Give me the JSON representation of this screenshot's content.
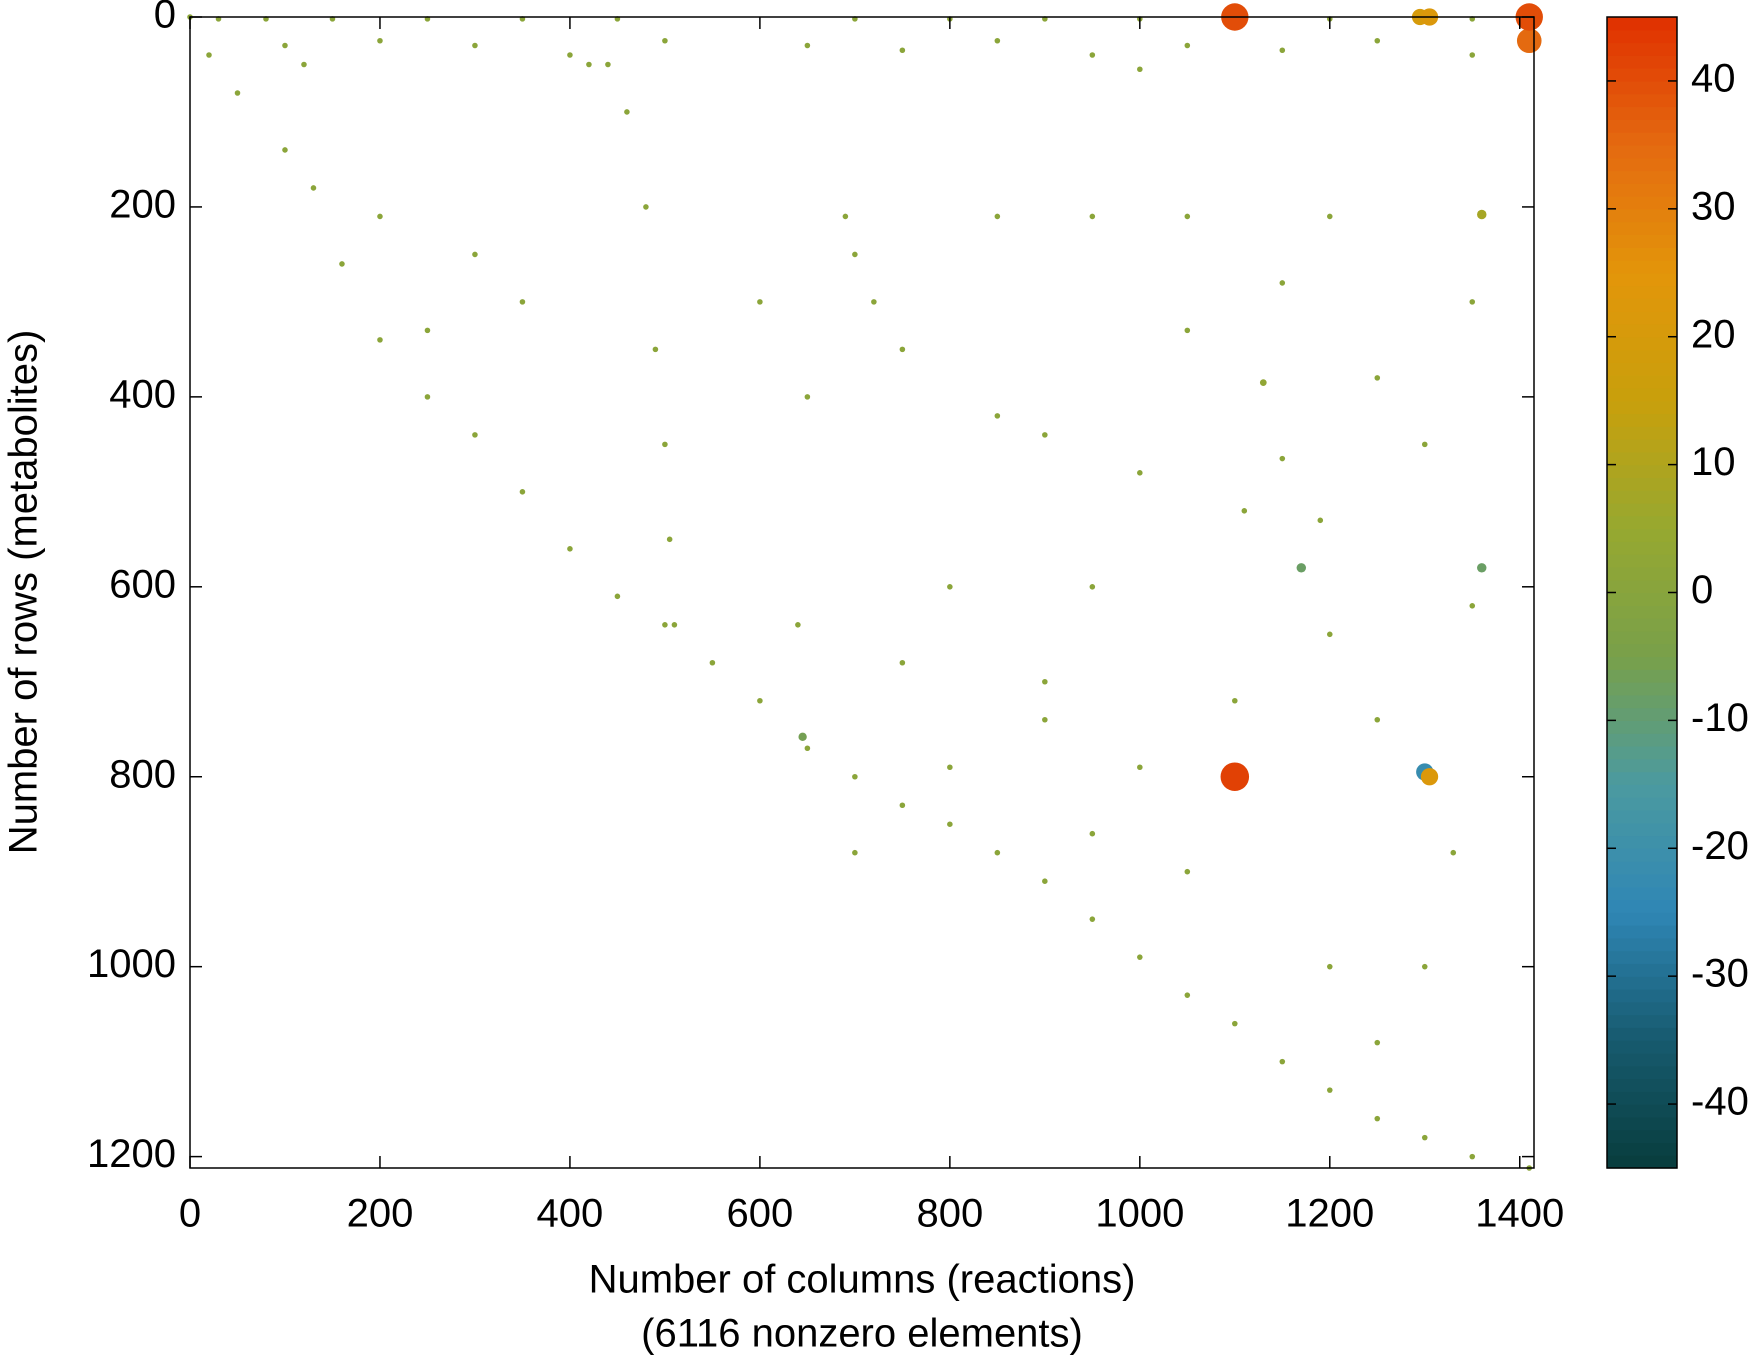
{
  "chart_data": {
    "type": "scatter",
    "xlabel": "Number of columns (reactions)",
    "xlabel_note": "(6116 nonzero elements)",
    "ylabel": "Number of rows (metabolites)",
    "xlim": [
      0,
      1415
    ],
    "ylim": [
      1212,
      0
    ],
    "xticks": [
      0,
      200,
      400,
      600,
      800,
      1000,
      1200,
      1400
    ],
    "yticks": [
      0,
      200,
      400,
      600,
      800,
      1000,
      1200
    ],
    "clim": [
      -45,
      45
    ],
    "cticks": [
      -40,
      -30,
      -20,
      -10,
      0,
      10,
      20,
      30,
      40
    ],
    "colormap": [
      "#083c3c",
      "#175a6e",
      "#2f86b5",
      "#4b9aa0",
      "#78a04a",
      "#97a830",
      "#c8a00c",
      "#e3950a",
      "#e46a10",
      "#e03000"
    ],
    "x": [
      0,
      20,
      50,
      100,
      130,
      160,
      200,
      250,
      300,
      350,
      400,
      450,
      500,
      550,
      600,
      650,
      700,
      750,
      800,
      850,
      900,
      950,
      1000,
      1050,
      1100,
      1150,
      1200,
      1250,
      1300,
      1350,
      1410,
      30,
      80,
      150,
      250,
      350,
      450,
      700,
      800,
      900,
      1000,
      1200,
      1350,
      100,
      200,
      300,
      400,
      500,
      650,
      750,
      850,
      950,
      1050,
      1150,
      1250,
      1350,
      120,
      420,
      1000,
      440,
      460,
      480,
      490,
      500,
      505,
      510,
      690,
      850,
      950,
      1050,
      1200,
      700,
      720,
      900,
      1000,
      1150,
      1110,
      1190,
      640,
      750,
      900,
      1100,
      1250,
      900,
      800,
      1000,
      950,
      1200,
      1250,
      1050,
      1300,
      700,
      800,
      950,
      1250,
      1350,
      200,
      300,
      350,
      250,
      600,
      650,
      750,
      850,
      1050,
      1150,
      1300,
      1200,
      1350,
      1330,
      1100,
      1295,
      1305,
      1410,
      1410,
      1100,
      1300,
      1305,
      1170,
      1360,
      645,
      1360,
      1130
    ],
    "y": [
      0,
      40,
      80,
      140,
      180,
      260,
      340,
      400,
      440,
      500,
      560,
      610,
      640,
      680,
      720,
      770,
      800,
      830,
      850,
      880,
      910,
      950,
      990,
      1030,
      1060,
      1100,
      1130,
      1160,
      1180,
      1200,
      1212,
      2,
      2,
      2,
      2,
      2,
      2,
      2,
      2,
      2,
      2,
      2,
      2,
      30,
      25,
      30,
      40,
      25,
      30,
      35,
      25,
      40,
      30,
      35,
      25,
      40,
      50,
      50,
      55,
      50,
      100,
      200,
      350,
      450,
      550,
      640,
      210,
      210,
      210,
      210,
      210,
      250,
      300,
      440,
      480,
      465,
      520,
      530,
      640,
      680,
      700,
      720,
      740,
      740,
      790,
      790,
      860,
      1000,
      1080,
      900,
      1000,
      880,
      600,
      600,
      380,
      300,
      210,
      250,
      300,
      330,
      300,
      400,
      350,
      420,
      330,
      280,
      450,
      650,
      620,
      880,
      0,
      0,
      0,
      0,
      25,
      800,
      795,
      800,
      580,
      580,
      758,
      208,
      385
    ],
    "values": [
      1,
      1,
      1,
      1,
      1,
      1,
      1,
      1,
      1,
      1,
      1,
      1,
      1,
      1,
      1,
      1,
      1,
      1,
      1,
      1,
      1,
      1,
      1,
      1,
      1,
      1,
      1,
      1,
      1,
      1,
      1,
      1,
      1,
      1,
      1,
      1,
      1,
      1,
      1,
      1,
      1,
      1,
      1,
      1,
      1,
      1,
      1,
      1,
      1,
      1,
      1,
      1,
      1,
      1,
      1,
      1,
      1,
      1,
      1,
      1,
      1,
      1,
      1,
      1,
      1,
      1,
      1,
      1,
      1,
      1,
      1,
      1,
      1,
      1,
      1,
      1,
      1,
      1,
      1,
      1,
      1,
      1,
      1,
      1,
      1,
      1,
      1,
      1,
      1,
      1,
      1,
      1,
      1,
      1,
      1,
      1,
      1,
      1,
      1,
      1,
      1,
      1,
      1,
      1,
      1,
      1,
      1,
      1,
      1,
      1,
      40,
      20,
      22,
      40,
      35,
      42,
      -22,
      22,
      -8,
      -8,
      -6,
      8,
      3
    ]
  }
}
